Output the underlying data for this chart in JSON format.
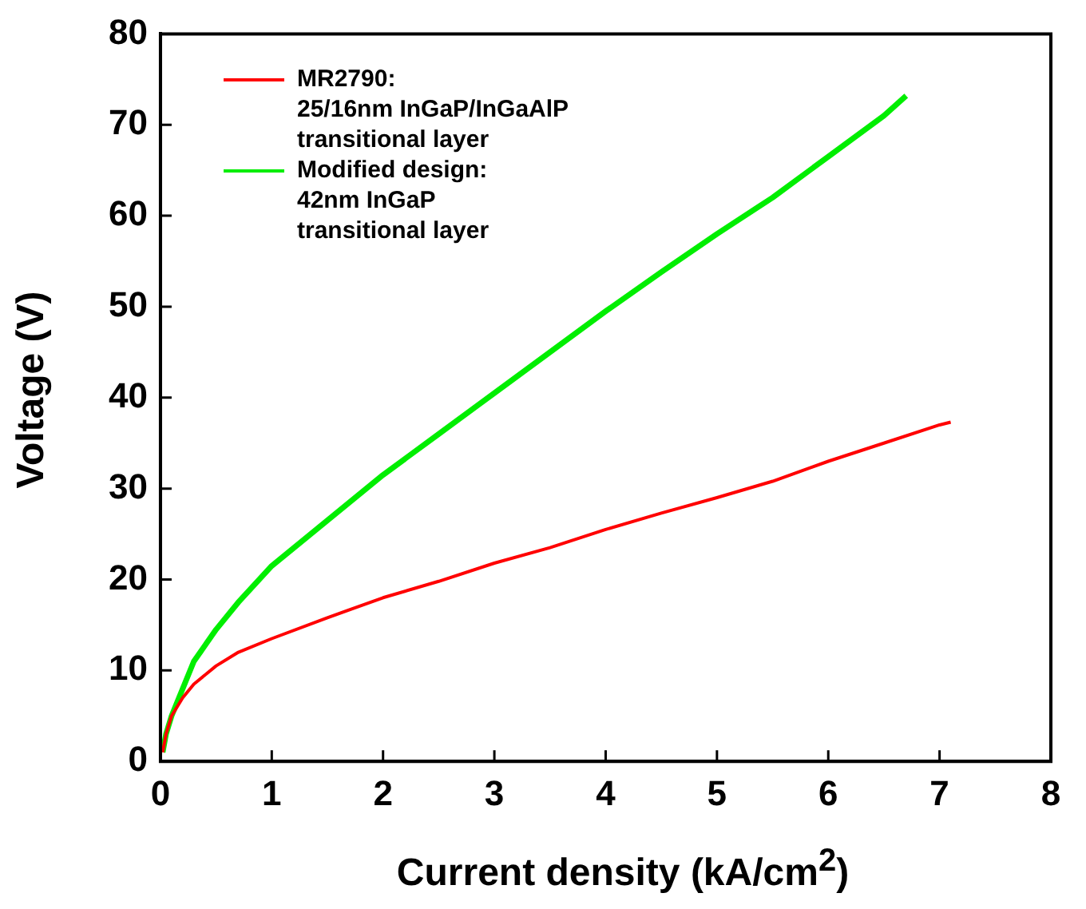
{
  "chart_data": {
    "type": "line",
    "xlabel": "Current density (kA/cm$^{2}$)",
    "ylabel": "Voltage (V)",
    "xlim": [
      0,
      8
    ],
    "xticks": [
      0,
      1,
      2,
      3,
      4,
      5,
      6,
      7,
      8
    ],
    "ylim": [
      0,
      80
    ],
    "yticks": [
      0,
      10,
      20,
      30,
      40,
      50,
      60,
      70,
      80
    ],
    "grid": false,
    "legend": "top left",
    "marker": "none",
    "line_style": "solid",
    "series": [
      {
        "name": "MR2790:\n25/16nm InGaP/InGaAlP\ntransitional layer",
        "color": "#ff0000",
        "x": [
          0.02,
          0.05,
          0.1,
          0.2,
          0.3,
          0.5,
          0.7,
          1,
          1.5,
          2,
          2.5,
          3,
          3.5,
          4,
          4.5,
          5,
          5.5,
          6,
          6.5,
          7,
          7.1
        ],
        "values": [
          1,
          3,
          5,
          7,
          8.5,
          10.5,
          12,
          13.5,
          15.8,
          18,
          19.8,
          21.8,
          23.5,
          25.5,
          27.3,
          29,
          30.8,
          33,
          35,
          37,
          37.3
        ]
      },
      {
        "name": "Modified design:\n42nm InGaP\ntransitional layer",
        "color": "#00ee00",
        "x": [
          0.02,
          0.05,
          0.1,
          0.2,
          0.3,
          0.5,
          0.7,
          1,
          1.5,
          2,
          2.5,
          3,
          3.5,
          4,
          4.5,
          5,
          5.5,
          6,
          6.5,
          6.7
        ],
        "values": [
          1,
          3,
          5,
          8,
          11,
          14.5,
          17.5,
          21.5,
          26.5,
          31.5,
          36,
          40.5,
          45,
          49.5,
          53.8,
          58,
          62,
          66.5,
          71,
          73.2
        ]
      }
    ]
  }
}
